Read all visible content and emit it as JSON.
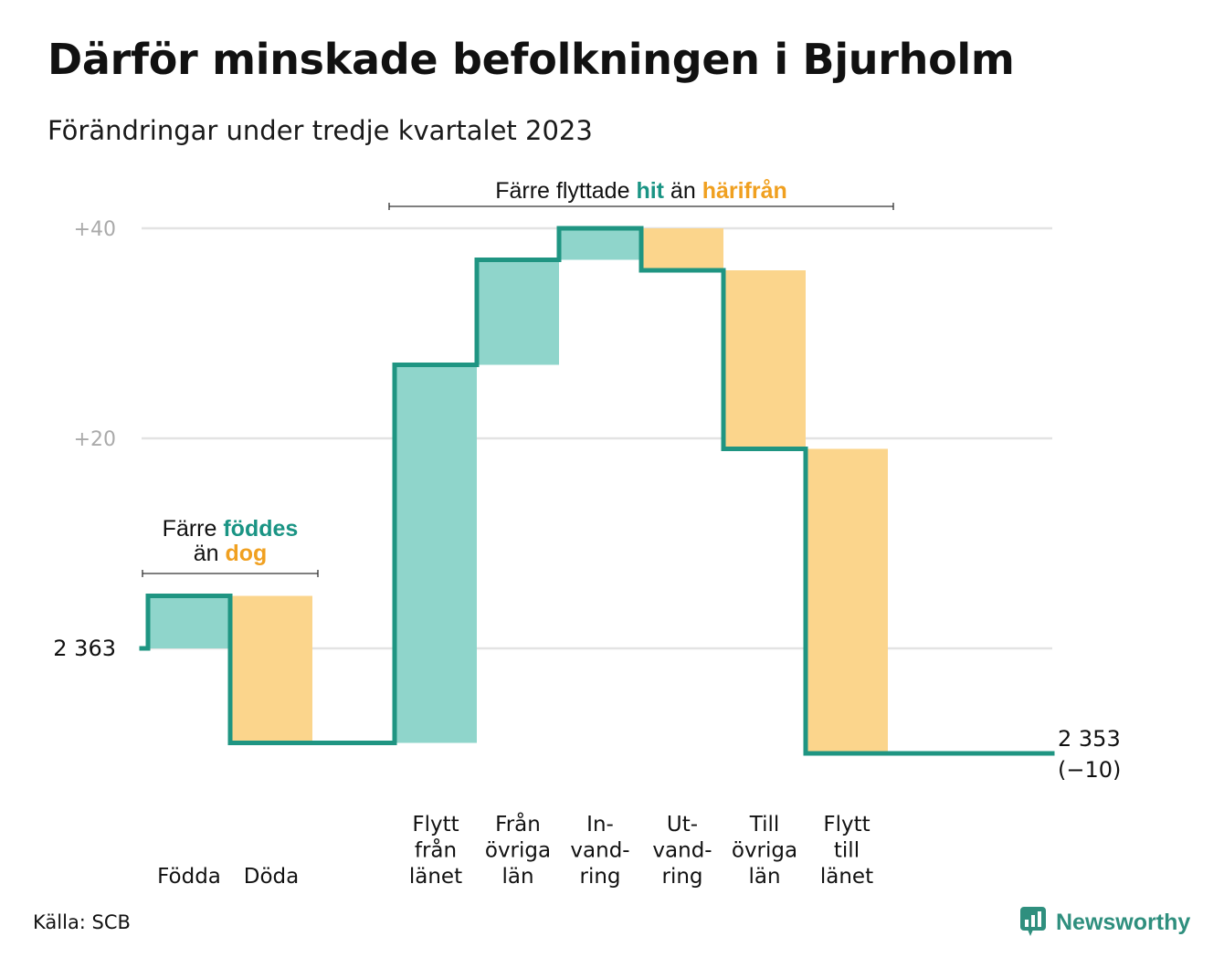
{
  "title": "Därför minskade befolkningen i Bjurholm",
  "subtitle": "Förändringar under tredje kvartalet 2023",
  "source": "Källa: SCB",
  "logo_text": "Newsworthy",
  "colors": {
    "increase_fill": "#8fd5cb",
    "decrease_fill": "#fbd58c",
    "line": "#1f9582",
    "teal_text": "#1a9484",
    "orange_text": "#f0a020",
    "grid": "#e3e3e3",
    "tick_text": "#aaaaaa"
  },
  "chart_data": {
    "type": "waterfall",
    "start_value": 2363,
    "end_value": 2353,
    "start_label": "2  363",
    "end_label": "2 353",
    "end_change_label": "(−10)",
    "ylim": [
      2351,
      2404
    ],
    "yticks": [
      {
        "value": 2383,
        "label": "+20"
      },
      {
        "value": 2403,
        "label": "+40"
      }
    ],
    "categories": [
      {
        "label": "Födda",
        "change": 5
      },
      {
        "label": "Döda",
        "change": -14
      },
      {
        "label": "",
        "change": 0
      },
      {
        "label": "Flytt från länet",
        "change": 36
      },
      {
        "label": "Från övriga län",
        "change": 10
      },
      {
        "label": "In-vand-ring",
        "change": 3
      },
      {
        "label": "Ut-vand-ring",
        "change": -4
      },
      {
        "label": "Till övriga län",
        "change": -17
      },
      {
        "label": "Flytt till länet",
        "change": -29
      }
    ],
    "x_label_lines": [
      [
        "Födda"
      ],
      [
        "Döda"
      ],
      [],
      [
        "Flytt",
        "från",
        "länet"
      ],
      [
        "Från",
        "övriga",
        "län"
      ],
      [
        "In-",
        "vand-",
        "ring"
      ],
      [
        "Ut-",
        "vand-",
        "ring"
      ],
      [
        "Till",
        "övriga",
        "län"
      ],
      [
        "Flytt",
        "till",
        "länet"
      ]
    ],
    "annotations": [
      {
        "from_category": 0,
        "to_category": 1,
        "parts": [
          [
            {
              "text": "Färre ",
              "style": "plain"
            },
            {
              "text": "föddes",
              "style": "teal"
            }
          ],
          [
            {
              "text": "än ",
              "style": "plain"
            },
            {
              "text": "dog",
              "style": "orange"
            }
          ]
        ]
      },
      {
        "from_category": 3,
        "to_category": 8,
        "parts": [
          [
            {
              "text": "Färre flyttade ",
              "style": "plain"
            },
            {
              "text": "hit",
              "style": "teal"
            },
            {
              "text": " än ",
              "style": "plain"
            },
            {
              "text": "härifrån",
              "style": "orange"
            }
          ]
        ]
      }
    ]
  }
}
